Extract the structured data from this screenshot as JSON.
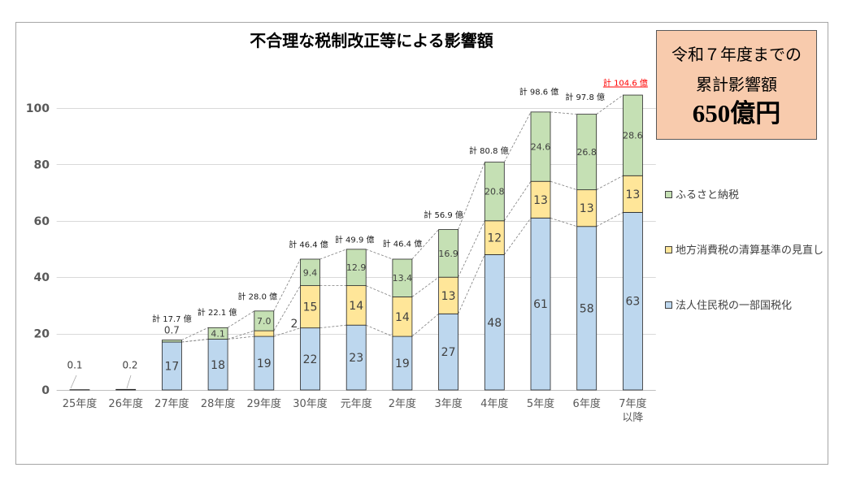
{
  "callout": {
    "line1": "令和７年度までの",
    "line2": "累計影響額",
    "amount": "650億円",
    "background": "#F8CBAD"
  },
  "chart_data": {
    "type": "bar",
    "stacked": true,
    "title": "不合理な税制改正等による影響額",
    "xlabel": "",
    "ylabel": "",
    "categories": [
      "25年度",
      "26年度",
      "27年度",
      "28年度",
      "29年度",
      "30年度",
      "元年度",
      "2年度",
      "3年度",
      "4年度",
      "5年度",
      "6年度",
      "7年度以降"
    ],
    "yticks": [
      0,
      20,
      40,
      60,
      80,
      100
    ],
    "ylim": [
      0,
      110
    ],
    "grid": true,
    "series": [
      {
        "name": "法人住民税の一部国税化",
        "color": "#BDD7EE",
        "values": [
          0,
          0,
          17,
          18,
          19,
          22,
          23,
          19,
          27,
          48,
          61,
          58,
          63
        ],
        "labels": [
          null,
          null,
          "17",
          "18",
          "19",
          "22",
          "23",
          "19",
          "27",
          "48",
          "61",
          "58",
          "63"
        ]
      },
      {
        "name": "地方消費税の清算基準の見直し",
        "color": "#FFE699",
        "values": [
          0,
          0,
          0,
          0,
          2,
          15,
          14,
          14,
          13,
          12,
          13,
          13,
          13
        ],
        "labels": [
          null,
          null,
          null,
          null,
          "2",
          "15",
          "14",
          "14",
          "13",
          "12",
          "13",
          "13",
          "13"
        ]
      },
      {
        "name": "ふるさと納税",
        "color": "#C5E0B4",
        "values": [
          0.1,
          0.2,
          0.7,
          4.1,
          7.0,
          9.4,
          12.9,
          13.4,
          16.9,
          20.8,
          24.6,
          26.8,
          28.6
        ],
        "labels": [
          "0.1",
          "0.2",
          "0.7",
          "4.1",
          "7.0",
          "9.4",
          "12.9",
          "13.4",
          "16.9",
          "20.8",
          "24.6",
          "26.8",
          "28.6"
        ]
      }
    ],
    "totals": [
      null,
      null,
      "計 17.7 億",
      "計 22.1 億",
      "計 28.0 億",
      "計 46.4 億",
      "計 49.9 億",
      "計 46.4 億",
      "計 56.9 億",
      "計 80.8 億",
      "計 98.6 億",
      "計 97.8 億",
      "計 104.6 億"
    ],
    "highlight_total_index": 12,
    "highlight_color": "#FF0000",
    "label_color": "#404040"
  }
}
